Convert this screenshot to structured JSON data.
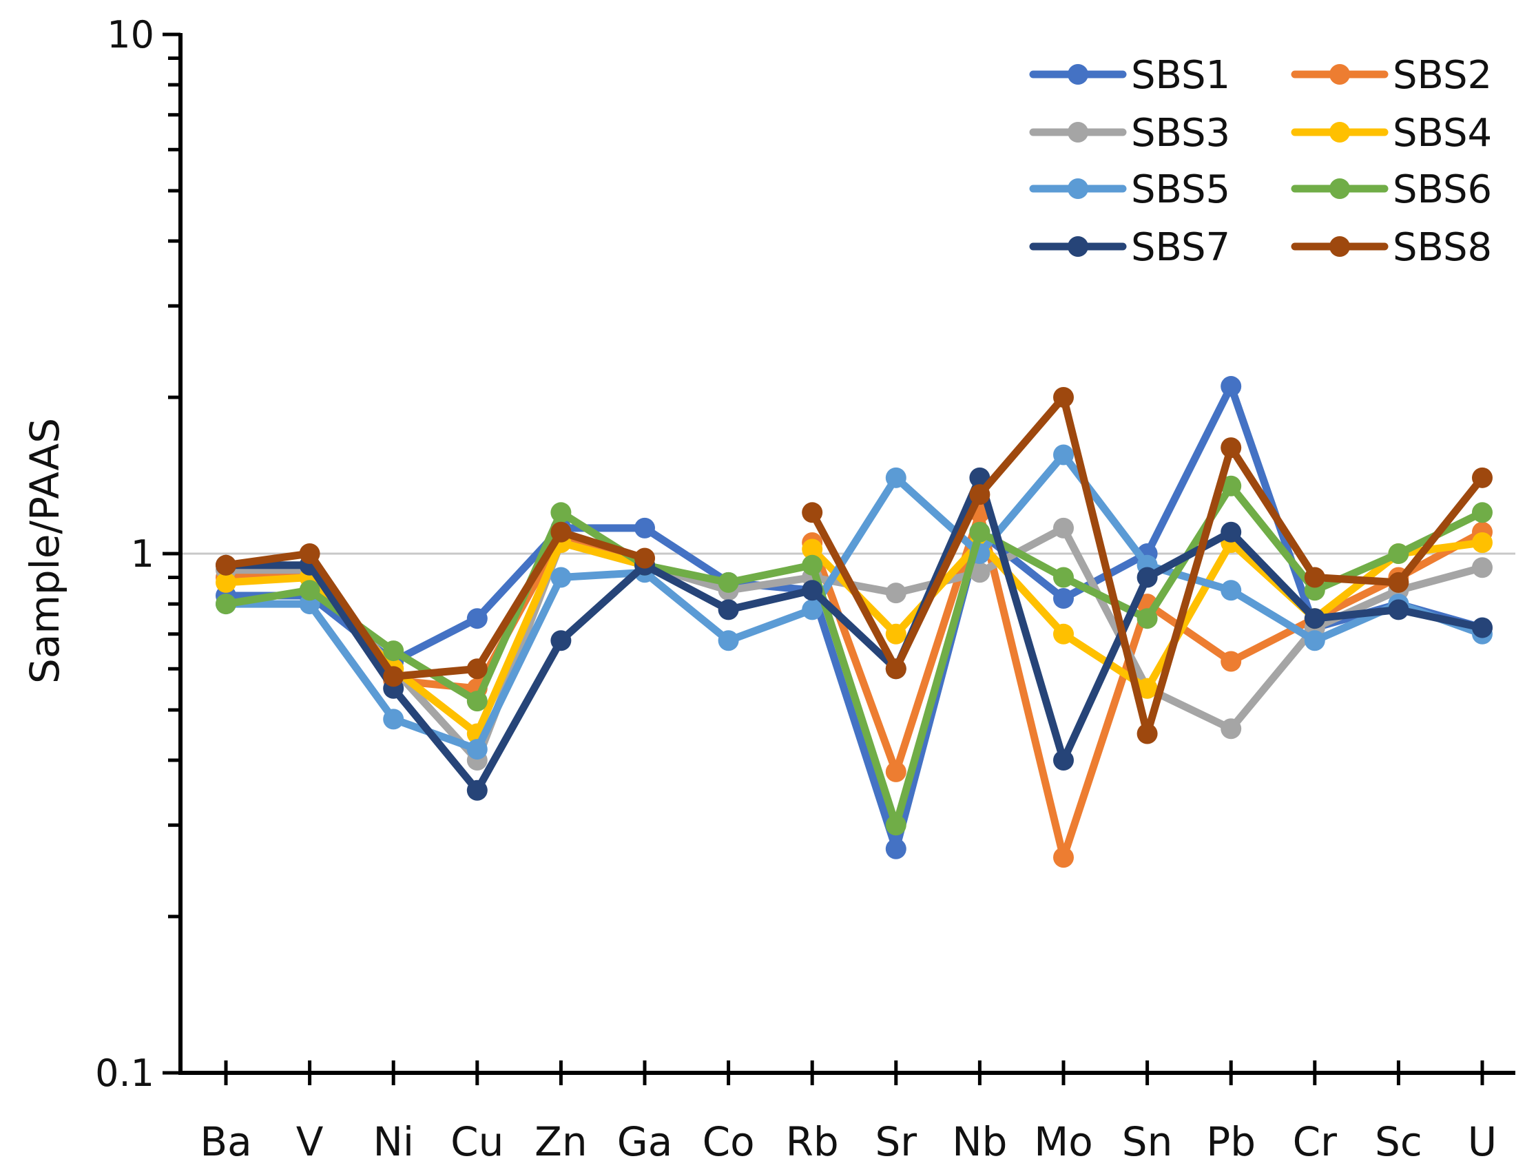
{
  "chart_data": {
    "type": "line",
    "title": "",
    "xlabel": "",
    "ylabel": "Sample/PAAS",
    "yscale": "log",
    "ylim": [
      0.1,
      10
    ],
    "ytick_labels": [
      "0.1",
      "1",
      "10"
    ],
    "reference_line": 1,
    "legend_position": "top-right",
    "categories": [
      "Ba",
      "V",
      "Ni",
      "Cu",
      "Zn",
      "Ga",
      "Co",
      "Rb",
      "Sr",
      "Nb",
      "Mo",
      "Sn",
      "Pb",
      "Cr",
      "Sc",
      "U"
    ],
    "series": [
      {
        "name": "SBS1",
        "color": "#4472C4",
        "values": [
          0.83,
          0.83,
          0.62,
          0.75,
          1.12,
          1.12,
          0.88,
          0.85,
          0.27,
          1.1,
          0.82,
          1.0,
          2.1,
          0.72,
          0.8,
          0.72
        ]
      },
      {
        "name": "SBS2",
        "color": "#ED7D31",
        "values": [
          0.9,
          0.93,
          0.57,
          0.55,
          1.08,
          0.98,
          null,
          1.05,
          0.38,
          1.2,
          0.26,
          0.8,
          0.62,
          0.75,
          0.9,
          1.1
        ]
      },
      {
        "name": "SBS3",
        "color": "#A5A5A5",
        "values": [
          0.93,
          0.93,
          0.6,
          0.4,
          1.05,
          0.95,
          0.85,
          0.9,
          0.84,
          0.92,
          1.12,
          0.55,
          0.46,
          0.72,
          0.85,
          0.94
        ]
      },
      {
        "name": "SBS4",
        "color": "#FFC000",
        "values": [
          0.88,
          0.9,
          0.6,
          0.45,
          1.05,
          0.95,
          null,
          1.02,
          0.7,
          1.05,
          0.7,
          0.55,
          1.05,
          0.75,
          1.0,
          1.05
        ]
      },
      {
        "name": "SBS5",
        "color": "#5B9BD5",
        "values": [
          0.8,
          0.8,
          0.48,
          0.42,
          0.9,
          0.92,
          0.68,
          0.78,
          1.4,
          1.0,
          1.55,
          0.95,
          0.85,
          0.68,
          0.8,
          0.7
        ]
      },
      {
        "name": "SBS6",
        "color": "#70AD47",
        "values": [
          0.8,
          0.85,
          0.65,
          0.52,
          1.2,
          0.95,
          0.88,
          0.95,
          0.3,
          1.1,
          0.9,
          0.75,
          1.35,
          0.85,
          1.0,
          1.2
        ]
      },
      {
        "name": "SBS7",
        "color": "#264478",
        "values": [
          0.95,
          0.95,
          0.55,
          0.35,
          0.68,
          0.95,
          0.78,
          0.85,
          0.6,
          1.4,
          0.4,
          0.9,
          1.1,
          0.75,
          0.78,
          0.72
        ]
      },
      {
        "name": "SBS8",
        "color": "#9E480E",
        "values": [
          0.95,
          1.0,
          0.58,
          0.6,
          1.1,
          0.98,
          null,
          1.2,
          0.6,
          1.3,
          2.0,
          0.45,
          1.6,
          0.9,
          0.88,
          1.4
        ]
      }
    ]
  }
}
